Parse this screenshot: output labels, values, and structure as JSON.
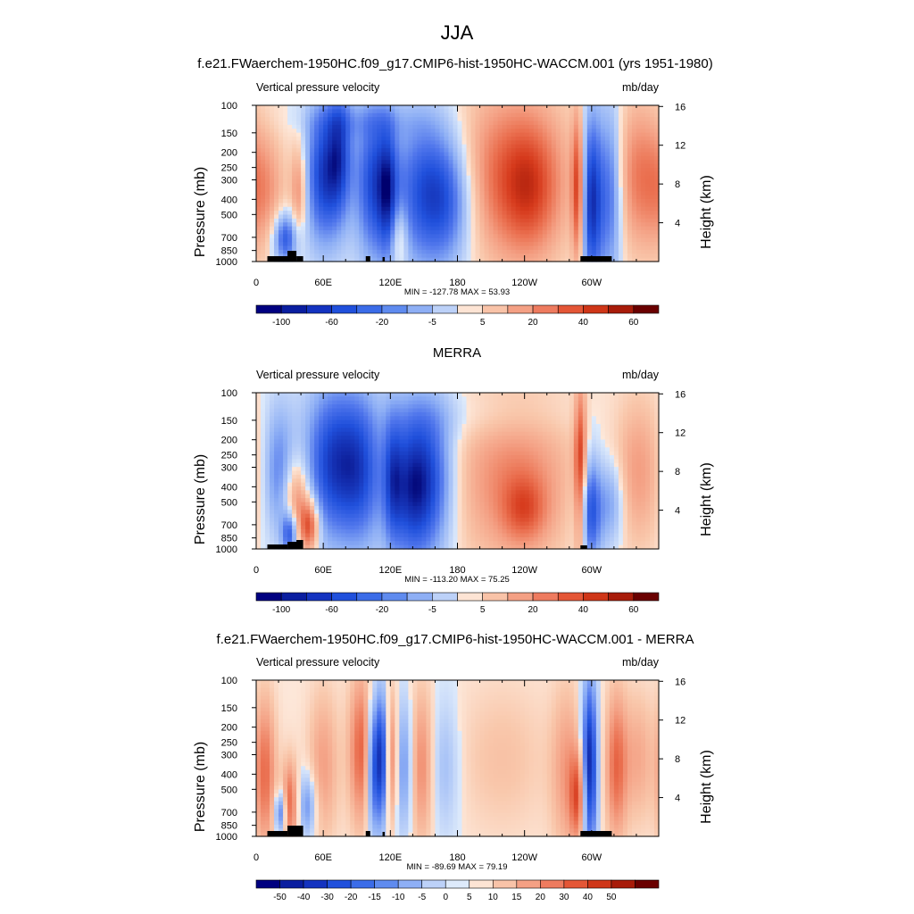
{
  "figure": {
    "title": "JJA",
    "colors": {
      "blue_extreme": "#000066",
      "blue_strong": "#1c3fd6",
      "blue_mid": "#3b66e8",
      "blue_light": "#a7c4f7",
      "neutral_pale_blue": "#d6e6fa",
      "neutral_pale_red": "#fde4d4",
      "red_light": "#f4a88a",
      "red_mid": "#ea6a48",
      "red_strong": "#d23418",
      "red_extreme": "#6a0000",
      "topography": "#000000"
    }
  },
  "chart_data": [
    {
      "type": "heatmap",
      "title": "f.e21.FWaerchem-1950HC.f09_g17.CMIP6-hist-1950HC-WACCM.001 (yrs 1951-1980)",
      "left_label": "Vertical pressure velocity",
      "right_label": "mb/day",
      "ylabel": "Pressure (mb)",
      "y2label": "Height (km)",
      "x_ticks": [
        "0",
        "60E",
        "120E",
        "180",
        "120W",
        "60W"
      ],
      "y_ticks": [
        "100",
        "150",
        "200",
        "250",
        "300",
        "400",
        "500",
        "700",
        "850",
        "1000"
      ],
      "y_ticks_right": [
        "16",
        "12",
        "8",
        "4"
      ],
      "minmax": "MIN = -127.78  MAX =  53.93",
      "min": -127.78,
      "max": 53.93,
      "colorbar_labels": [
        "-100",
        "-60",
        "-20",
        "-5",
        "5",
        "20",
        "40",
        "60"
      ]
    },
    {
      "type": "heatmap",
      "title": "MERRA",
      "left_label": "Vertical pressure velocity",
      "right_label": "mb/day",
      "ylabel": "Pressure (mb)",
      "y2label": "Height (km)",
      "x_ticks": [
        "0",
        "60E",
        "120E",
        "180",
        "120W",
        "60W"
      ],
      "y_ticks": [
        "100",
        "150",
        "200",
        "250",
        "300",
        "400",
        "500",
        "700",
        "850",
        "1000"
      ],
      "y_ticks_right": [
        "16",
        "12",
        "8",
        "4"
      ],
      "minmax": "MIN = -113.20  MAX =  75.25",
      "min": -113.2,
      "max": 75.25,
      "colorbar_labels": [
        "-100",
        "-60",
        "-20",
        "-5",
        "5",
        "20",
        "40",
        "60"
      ]
    },
    {
      "type": "heatmap",
      "title": "f.e21.FWaerchem-1950HC.f09_g17.CMIP6-hist-1950HC-WACCM.001 - MERRA",
      "left_label": "Vertical pressure velocity",
      "right_label": "mb/day",
      "ylabel": "Pressure (mb)",
      "y2label": "Height (km)",
      "x_ticks": [
        "0",
        "60E",
        "120E",
        "180",
        "120W",
        "60W"
      ],
      "y_ticks": [
        "100",
        "150",
        "200",
        "250",
        "300",
        "400",
        "500",
        "700",
        "850",
        "1000"
      ],
      "y_ticks_right": [
        "16",
        "12",
        "8",
        "4"
      ],
      "minmax": "MIN = -89.69  MAX =  79.19",
      "min": -89.69,
      "max": 79.19,
      "colorbar_labels": [
        "-50",
        "-40",
        "-30",
        "-20",
        "-15",
        "-10",
        "-5",
        "0",
        "5",
        "10",
        "15",
        "20",
        "30",
        "40",
        "50"
      ]
    }
  ]
}
